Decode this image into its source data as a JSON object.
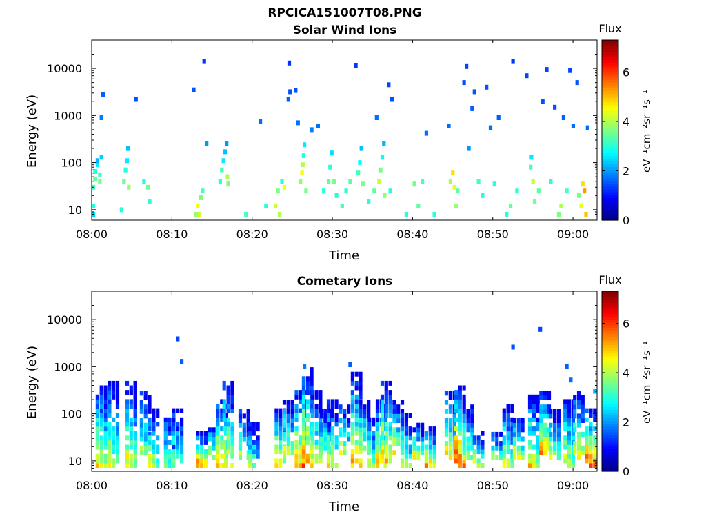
{
  "figure": {
    "title": "RPCICA151007T08.PNG"
  },
  "chart_data": [
    {
      "type": "heatmap",
      "title": "Solar Wind Ions",
      "xlabel": "Time",
      "ylabel": "Energy (eV)",
      "yscale": "log",
      "xlim": [
        "08:00",
        "09:03"
      ],
      "ylim": [
        6,
        40000
      ],
      "x_ticks": [
        "08:00",
        "08:10",
        "08:20",
        "08:30",
        "08:40",
        "08:50",
        "09:00"
      ],
      "y_ticks": [
        "10",
        "100",
        "1000",
        "10000"
      ],
      "colorbar": {
        "label": "Flux",
        "unit": "eV⁻¹cm⁻²sr⁻¹s⁻¹",
        "range": [
          0,
          7.3
        ],
        "ticks": [
          "0",
          "2",
          "4",
          "6"
        ],
        "colormap": "jet"
      },
      "points": [
        [
          0.0,
          8,
          2.5
        ],
        [
          0.0,
          12,
          3.0
        ],
        [
          0.0,
          30,
          3.2
        ],
        [
          0.2,
          45,
          3.4
        ],
        [
          0.2,
          65,
          3.0
        ],
        [
          0.5,
          90,
          2.6
        ],
        [
          0.5,
          110,
          2.2
        ],
        [
          0.8,
          40,
          3.6
        ],
        [
          0.8,
          55,
          3.2
        ],
        [
          1.0,
          900,
          1.8
        ],
        [
          1.2,
          2800,
          1.6
        ],
        [
          1.0,
          130,
          2.4
        ],
        [
          3.5,
          10,
          3.0
        ],
        [
          3.8,
          40,
          3.5
        ],
        [
          4.0,
          70,
          3.0
        ],
        [
          4.2,
          110,
          2.6
        ],
        [
          4.3,
          200,
          2.3
        ],
        [
          4.4,
          30,
          3.8
        ],
        [
          5.3,
          2200,
          1.5
        ],
        [
          6.3,
          40,
          3.0
        ],
        [
          6.8,
          30,
          3.5
        ],
        [
          7.0,
          15,
          3.0
        ],
        [
          12.5,
          3500,
          1.5
        ],
        [
          12.8,
          8,
          3.8
        ],
        [
          13.0,
          12,
          4.5
        ],
        [
          13.2,
          8,
          4.2
        ],
        [
          13.4,
          18,
          3.6
        ],
        [
          13.6,
          25,
          3.2
        ],
        [
          13.8,
          14000,
          1.3
        ],
        [
          14.1,
          250,
          2.0
        ],
        [
          15.8,
          40,
          3.0
        ],
        [
          16.0,
          70,
          3.2
        ],
        [
          16.2,
          110,
          2.6
        ],
        [
          16.4,
          170,
          2.3
        ],
        [
          16.6,
          250,
          2.0
        ],
        [
          16.7,
          50,
          4.0
        ],
        [
          16.8,
          35,
          3.6
        ],
        [
          19.0,
          8,
          3.2
        ],
        [
          20.8,
          750,
          1.7
        ],
        [
          21.5,
          12,
          3.0
        ],
        [
          22.7,
          12,
          4.2
        ],
        [
          23.0,
          25,
          3.6
        ],
        [
          23.2,
          8,
          4.0
        ],
        [
          23.5,
          40,
          3.0
        ],
        [
          23.8,
          30,
          4.5
        ],
        [
          24.3,
          2200,
          1.6
        ],
        [
          24.4,
          13000,
          1.3
        ],
        [
          24.5,
          3200,
          1.5
        ],
        [
          25.2,
          3400,
          1.5
        ],
        [
          25.5,
          700,
          1.7
        ],
        [
          25.8,
          40,
          3.8
        ],
        [
          26.0,
          60,
          4.5
        ],
        [
          26.1,
          90,
          4.0
        ],
        [
          26.2,
          140,
          3.0
        ],
        [
          26.3,
          240,
          2.6
        ],
        [
          26.5,
          25,
          3.6
        ],
        [
          27.2,
          500,
          1.8
        ],
        [
          28.0,
          600,
          1.7
        ],
        [
          28.7,
          25,
          3.0
        ],
        [
          29.3,
          40,
          3.4
        ],
        [
          29.5,
          80,
          3.0
        ],
        [
          29.7,
          160,
          2.5
        ],
        [
          30.0,
          40,
          3.6
        ],
        [
          30.3,
          20,
          3.0
        ],
        [
          31.0,
          12,
          3.2
        ],
        [
          31.5,
          25,
          3.0
        ],
        [
          32.0,
          40,
          3.4
        ],
        [
          32.7,
          11500,
          1.3
        ],
        [
          33.0,
          60,
          3.2
        ],
        [
          33.2,
          100,
          2.8
        ],
        [
          33.4,
          200,
          2.3
        ],
        [
          33.6,
          35,
          3.6
        ],
        [
          34.3,
          15,
          3.0
        ],
        [
          35.0,
          25,
          3.4
        ],
        [
          35.3,
          900,
          1.7
        ],
        [
          35.6,
          40,
          4.2
        ],
        [
          35.8,
          70,
          3.6
        ],
        [
          36.0,
          130,
          2.8
        ],
        [
          36.2,
          250,
          2.2
        ],
        [
          36.3,
          20,
          3.8
        ],
        [
          36.8,
          4500,
          1.4
        ],
        [
          37.0,
          25,
          3.0
        ],
        [
          37.2,
          2200,
          1.5
        ],
        [
          39.0,
          8,
          3.0
        ],
        [
          40.0,
          35,
          3.6
        ],
        [
          40.5,
          12,
          3.4
        ],
        [
          41.0,
          40,
          3.2
        ],
        [
          41.5,
          420,
          1.7
        ],
        [
          42.5,
          8,
          3.0
        ],
        [
          44.3,
          600,
          1.7
        ],
        [
          44.5,
          40,
          4.0
        ],
        [
          44.8,
          60,
          4.8
        ],
        [
          45.0,
          30,
          4.4
        ],
        [
          45.2,
          12,
          3.8
        ],
        [
          45.4,
          25,
          3.4
        ],
        [
          46.2,
          5000,
          1.5
        ],
        [
          46.5,
          11000,
          1.4
        ],
        [
          46.8,
          200,
          2.0
        ],
        [
          47.2,
          1400,
          1.6
        ],
        [
          47.5,
          3200,
          1.5
        ],
        [
          48.0,
          40,
          3.2
        ],
        [
          48.5,
          20,
          3.0
        ],
        [
          49.0,
          4000,
          1.5
        ],
        [
          49.5,
          550,
          1.7
        ],
        [
          50.0,
          35,
          3.0
        ],
        [
          50.5,
          900,
          1.6
        ],
        [
          51.5,
          8,
          3.0
        ],
        [
          52.0,
          12,
          3.4
        ],
        [
          52.3,
          14000,
          1.3
        ],
        [
          52.8,
          25,
          3.0
        ],
        [
          54.0,
          7000,
          1.4
        ],
        [
          54.5,
          80,
          3.2
        ],
        [
          54.6,
          130,
          2.6
        ],
        [
          54.8,
          40,
          4.2
        ],
        [
          55.0,
          15,
          3.6
        ],
        [
          55.5,
          25,
          3.4
        ],
        [
          56.0,
          2000,
          1.5
        ],
        [
          56.5,
          9500,
          1.4
        ],
        [
          57.0,
          40,
          3.0
        ],
        [
          57.5,
          1500,
          1.5
        ],
        [
          58.0,
          8,
          3.6
        ],
        [
          58.3,
          12,
          4.0
        ],
        [
          58.6,
          900,
          1.6
        ],
        [
          59.0,
          25,
          3.2
        ],
        [
          59.4,
          9000,
          1.4
        ],
        [
          59.8,
          600,
          1.7
        ],
        [
          60.3,
          5000,
          1.5
        ],
        [
          60.5,
          20,
          3.6
        ],
        [
          60.8,
          12,
          4.4
        ],
        [
          61.0,
          35,
          4.8
        ],
        [
          61.2,
          25,
          5.3
        ],
        [
          61.4,
          8,
          5.0
        ],
        [
          61.6,
          550,
          1.7
        ]
      ]
    },
    {
      "type": "heatmap",
      "title": "Cometary Ions",
      "xlabel": "Time",
      "ylabel": "Energy (eV)",
      "yscale": "log",
      "xlim": [
        "08:00",
        "09:03"
      ],
      "ylim": [
        6,
        40000
      ],
      "x_ticks": [
        "08:00",
        "08:10",
        "08:20",
        "08:30",
        "08:40",
        "08:50",
        "09:00"
      ],
      "y_ticks": [
        "10",
        "100",
        "1000",
        "10000"
      ],
      "colorbar": {
        "label": "Flux",
        "unit": "eV⁻¹cm⁻²sr⁻¹s⁻¹",
        "range": [
          0,
          7.3
        ],
        "ticks": [
          "0",
          "2",
          "4",
          "6"
        ],
        "colormap": "jet"
      },
      "bursts": [
        [
          0.5,
          8,
          400,
          5.5
        ],
        [
          2.0,
          8,
          500,
          4.8
        ],
        [
          4.2,
          8,
          450,
          5.2
        ],
        [
          6.0,
          12,
          300,
          4.5
        ],
        [
          7.0,
          8,
          120,
          5.0
        ],
        [
          9.0,
          8,
          80,
          4.2
        ],
        [
          10.0,
          10,
          120,
          4.3
        ],
        [
          13.0,
          8,
          40,
          6.3
        ],
        [
          14.5,
          12,
          60,
          5.0
        ],
        [
          15.5,
          8,
          200,
          5.5
        ],
        [
          16.3,
          8,
          450,
          5.8
        ],
        [
          18.3,
          12,
          120,
          4.5
        ],
        [
          19.5,
          8,
          60,
          4.4
        ],
        [
          22.8,
          8,
          130,
          5.6
        ],
        [
          23.8,
          15,
          200,
          5.0
        ],
        [
          25.3,
          8,
          350,
          5.8
        ],
        [
          26.2,
          8,
          900,
          6.2
        ],
        [
          27.3,
          10,
          300,
          5.0
        ],
        [
          28.4,
          15,
          120,
          4.6
        ],
        [
          29.3,
          8,
          200,
          5.3
        ],
        [
          30.8,
          15,
          160,
          4.8
        ],
        [
          32.3,
          8,
          700,
          5.8
        ],
        [
          33.3,
          15,
          200,
          5.0
        ],
        [
          34.4,
          8,
          80,
          4.6
        ],
        [
          35.4,
          8,
          200,
          5.6
        ],
        [
          36.0,
          10,
          500,
          5.8
        ],
        [
          37.5,
          15,
          200,
          5.0
        ],
        [
          38.5,
          8,
          100,
          4.8
        ],
        [
          40.0,
          12,
          60,
          5.3
        ],
        [
          41.5,
          8,
          50,
          5.8
        ],
        [
          44.0,
          12,
          300,
          5.3
        ],
        [
          45.2,
          8,
          400,
          6.8
        ],
        [
          46.2,
          12,
          200,
          4.8
        ],
        [
          47.5,
          8,
          40,
          5.3
        ],
        [
          49.8,
          12,
          40,
          4.6
        ],
        [
          51.2,
          8,
          150,
          5.0
        ],
        [
          52.5,
          12,
          80,
          5.2
        ],
        [
          54.4,
          8,
          250,
          5.5
        ],
        [
          55.8,
          15,
          300,
          5.8
        ],
        [
          57.0,
          12,
          120,
          4.6
        ],
        [
          58.8,
          8,
          200,
          5.0
        ],
        [
          60.0,
          12,
          300,
          5.2
        ],
        [
          61.5,
          8,
          140,
          6.8
        ]
      ],
      "points": [
        [
          10.5,
          3900,
          1.4
        ],
        [
          11.0,
          1300,
          1.6
        ],
        [
          52.3,
          2600,
          1.5
        ],
        [
          55.7,
          6200,
          1.4
        ],
        [
          59.0,
          1000,
          1.6
        ],
        [
          59.5,
          520,
          1.7
        ],
        [
          32.0,
          1100,
          1.6
        ],
        [
          26.3,
          1000,
          1.8
        ],
        [
          62.5,
          300,
          2.2
        ]
      ]
    }
  ]
}
